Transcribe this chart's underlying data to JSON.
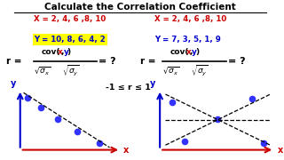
{
  "title": "Calculate the Correlation Coefficient",
  "bg_color": "#ffffff",
  "left_x_label": "X = 2, 4, 6 ,8, 10",
  "left_y_label": "Y = 10, 8, 6, 4, 2",
  "right_x_label": "X = 2, 4, 6 ,8, 10",
  "right_y_label": "Y = 7, 3, 5, 1, 9",
  "r_range": "-1 ≤ r ≤ 1",
  "red_color": "#cc0000",
  "blue_color": "#0000cc",
  "dot_color": "#3333ff"
}
